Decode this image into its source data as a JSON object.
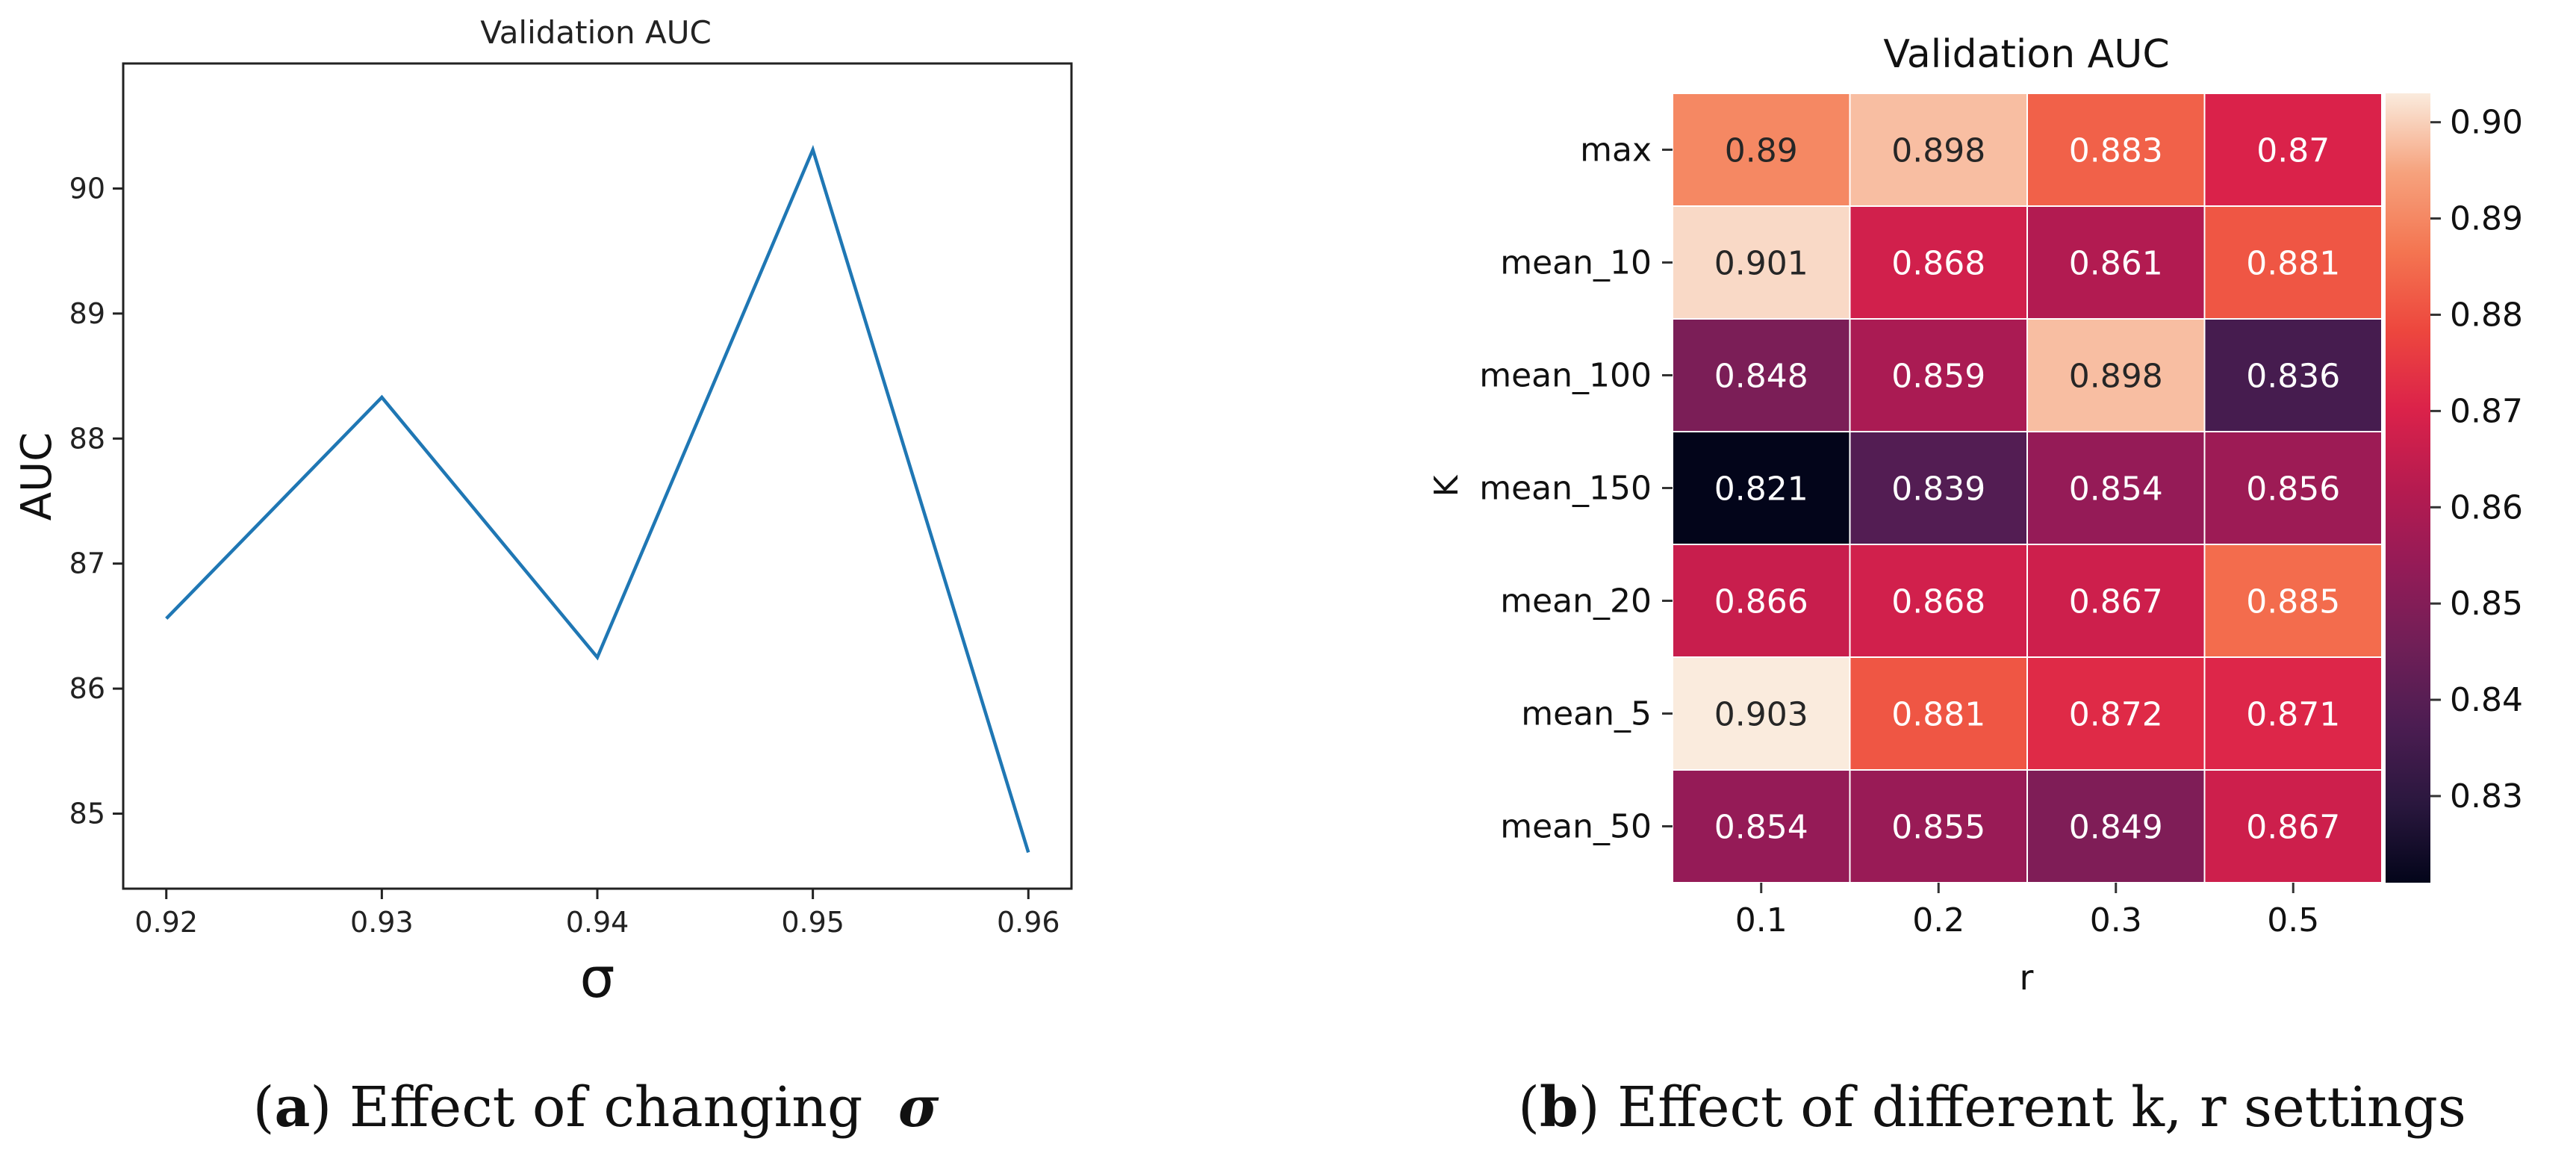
{
  "chart_data": [
    {
      "type": "line",
      "title": "Validation AUC",
      "xlabel": "σ",
      "ylabel": "AUC",
      "x": [
        0.92,
        0.93,
        0.94,
        0.95,
        0.96
      ],
      "x_tick_labels": [
        "0.92",
        "0.93",
        "0.94",
        "0.95",
        "0.96"
      ],
      "y_ticks": [
        85,
        86,
        87,
        88,
        89,
        90
      ],
      "y_tick_labels": [
        "85",
        "86",
        "87",
        "88",
        "89",
        "90"
      ],
      "xlim": [
        0.918,
        0.962
      ],
      "ylim": [
        84.4,
        91.0
      ],
      "grid": false,
      "series": [
        {
          "name": "AUC",
          "values": [
            86.56,
            88.33,
            86.25,
            90.31,
            84.69
          ],
          "color": "#1f77b4"
        }
      ],
      "caption_label": "a",
      "caption_text": "Effect of changing",
      "caption_symbol": "σ"
    },
    {
      "type": "heatmap",
      "title": "Validation AUC",
      "xlabel": "r",
      "ylabel": "K",
      "columns": [
        "0.1",
        "0.2",
        "0.3",
        "0.5"
      ],
      "rows": [
        "max",
        "mean_10",
        "mean_100",
        "mean_150",
        "mean_20",
        "mean_5",
        "mean_50"
      ],
      "values": [
        [
          0.89,
          0.898,
          0.883,
          0.87
        ],
        [
          0.901,
          0.868,
          0.861,
          0.881
        ],
        [
          0.848,
          0.859,
          0.898,
          0.836
        ],
        [
          0.821,
          0.839,
          0.854,
          0.856
        ],
        [
          0.866,
          0.868,
          0.867,
          0.885
        ],
        [
          0.903,
          0.881,
          0.872,
          0.871
        ],
        [
          0.854,
          0.855,
          0.849,
          0.867
        ]
      ],
      "labels": [
        [
          "0.89",
          "0.898",
          "0.883",
          "0.87"
        ],
        [
          "0.901",
          "0.868",
          "0.861",
          "0.881"
        ],
        [
          "0.848",
          "0.859",
          "0.898",
          "0.836"
        ],
        [
          "0.821",
          "0.839",
          "0.854",
          "0.856"
        ],
        [
          "0.866",
          "0.868",
          "0.867",
          "0.885"
        ],
        [
          "0.903",
          "0.881",
          "0.872",
          "0.871"
        ],
        [
          "0.854",
          "0.855",
          "0.849",
          "0.867"
        ]
      ],
      "colorbar_ticks": [
        0.83,
        0.84,
        0.85,
        0.86,
        0.87,
        0.88,
        0.89,
        0.9
      ],
      "colorbar_tick_labels": [
        "0.83",
        "0.84",
        "0.85",
        "0.86",
        "0.87",
        "0.88",
        "0.89",
        "0.90"
      ],
      "vmin": 0.821,
      "vmax": 0.903,
      "colormap": "rocket",
      "caption_label": "b",
      "caption_text": "Effect of different k, r settings"
    }
  ]
}
